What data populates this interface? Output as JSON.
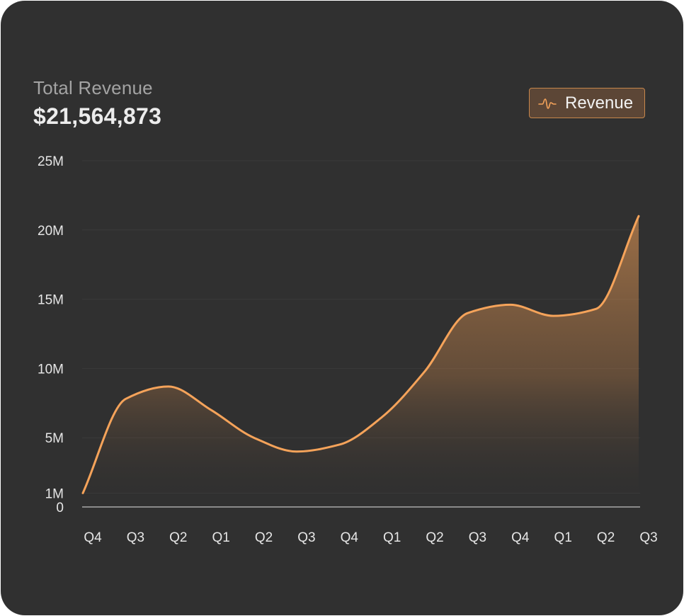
{
  "header": {
    "title": "Total Revenue",
    "total": "$21,564,873"
  },
  "legend": {
    "label": "Revenue",
    "icon": "wave-line-icon"
  },
  "colors": {
    "background": "#303030",
    "line": "#f5a35a",
    "gridline": "#3a3a3a",
    "axis": "#8a8a8a"
  },
  "chart_data": {
    "type": "area",
    "title": "Total Revenue",
    "categories": [
      "Q4",
      "Q3",
      "Q2",
      "Q1",
      "Q2",
      "Q3",
      "Q4",
      "Q1",
      "Q2",
      "Q3",
      "Q4",
      "Q1",
      "Q2",
      "Q3"
    ],
    "series": [
      {
        "name": "Revenue",
        "values": [
          1.0,
          7.8,
          8.7,
          7.0,
          5.0,
          4.0,
          4.5,
          6.5,
          9.8,
          14.0,
          14.6,
          13.8,
          14.3,
          21.0
        ]
      }
    ],
    "y_ticks": [
      {
        "value": 0,
        "label": "0"
      },
      {
        "value": 1,
        "label": "1M"
      },
      {
        "value": 5,
        "label": "5M"
      },
      {
        "value": 10,
        "label": "10M"
      },
      {
        "value": 15,
        "label": "15M"
      },
      {
        "value": 20,
        "label": "20M"
      },
      {
        "value": 25,
        "label": "25M"
      }
    ],
    "ylim": [
      0,
      25
    ],
    "grid": true,
    "legend_position": "top-right"
  }
}
